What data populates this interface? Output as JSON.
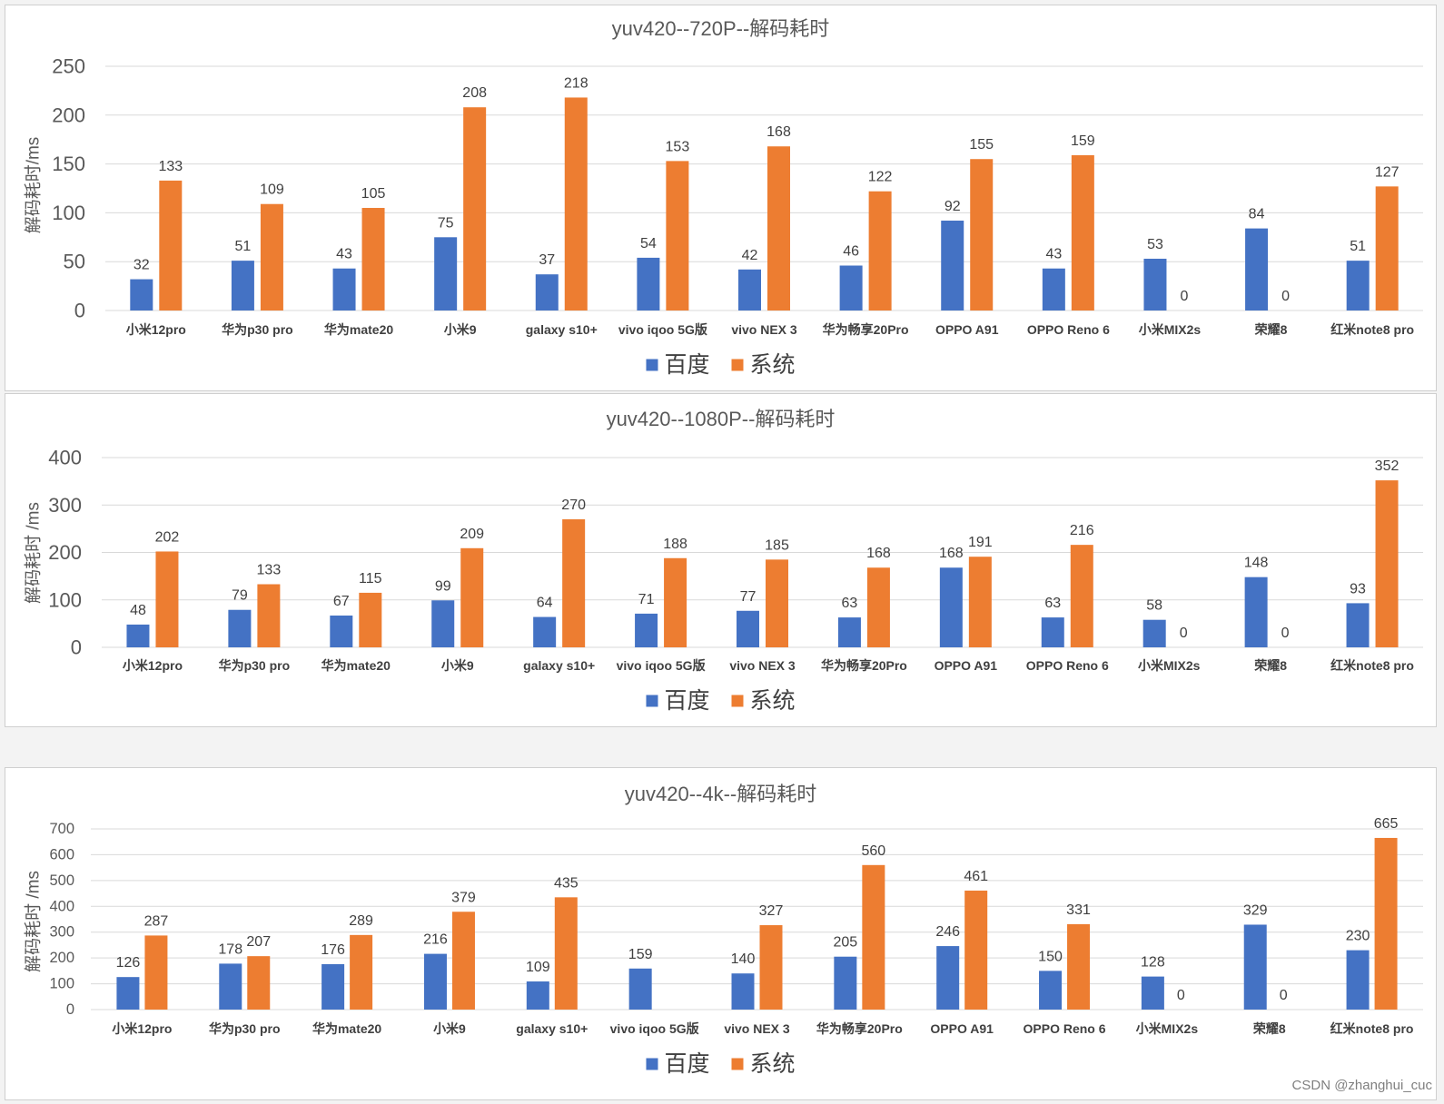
{
  "watermark": "CSDN @zhanghui_cuc",
  "chart_data": [
    {
      "type": "bar",
      "title": "yuv420--720P--解码耗时",
      "ylabel": "解码耗时/ms",
      "ylim": [
        0,
        250
      ],
      "yticks": [
        0,
        50,
        100,
        150,
        200,
        250
      ],
      "grid": true,
      "legend": "bottom",
      "categories": [
        "小米12pro",
        "华为p30 pro",
        "华为mate20",
        "小米9",
        "galaxy s10+",
        "vivo iqoo 5G版",
        "vivo NEX 3",
        "华为畅享20Pro",
        "OPPO A91",
        "OPPO Reno 6",
        "小米MIX2s",
        "荣耀8",
        "红米note8 pro"
      ],
      "series": [
        {
          "name": "百度",
          "color": "#4472C4",
          "values": [
            32,
            51,
            43,
            75,
            37,
            54,
            42,
            46,
            92,
            43,
            53,
            84,
            51
          ]
        },
        {
          "name": "系统",
          "color": "#ED7D31",
          "values": [
            133,
            109,
            105,
            208,
            218,
            153,
            168,
            122,
            155,
            159,
            0,
            0,
            127
          ]
        }
      ]
    },
    {
      "type": "bar",
      "title": "yuv420--1080P--解码耗时",
      "ylabel": "解码耗时 /ms",
      "ylim": [
        0,
        400
      ],
      "yticks": [
        0,
        100,
        200,
        300,
        400
      ],
      "grid": true,
      "legend": "bottom",
      "categories": [
        "小米12pro",
        "华为p30 pro",
        "华为mate20",
        "小米9",
        "galaxy s10+",
        "vivo iqoo 5G版",
        "vivo NEX 3",
        "华为畅享20Pro",
        "OPPO A91",
        "OPPO Reno 6",
        "小米MIX2s",
        "荣耀8",
        "红米note8 pro"
      ],
      "series": [
        {
          "name": "百度",
          "color": "#4472C4",
          "values": [
            48,
            79,
            67,
            99,
            64,
            71,
            77,
            63,
            168,
            63,
            58,
            148,
            93
          ]
        },
        {
          "name": "系统",
          "color": "#ED7D31",
          "values": [
            202,
            133,
            115,
            209,
            270,
            188,
            185,
            168,
            191,
            216,
            0,
            0,
            352
          ]
        }
      ]
    },
    {
      "type": "bar",
      "title": "yuv420--4k--解码耗时",
      "ylabel": "解码耗时 /ms",
      "ylim": [
        0,
        700
      ],
      "yticks": [
        0,
        100,
        200,
        300,
        400,
        500,
        600,
        700
      ],
      "grid": true,
      "legend": "bottom",
      "categories": [
        "小米12pro",
        "华为p30 pro",
        "华为mate20",
        "小米9",
        "galaxy s10+",
        "vivo iqoo 5G版",
        "vivo NEX 3",
        "华为畅享20Pro",
        "OPPO A91",
        "OPPO Reno 6",
        "小米MIX2s",
        "荣耀8",
        "红米note8 pro"
      ],
      "series": [
        {
          "name": "百度",
          "color": "#4472C4",
          "values": [
            126,
            178,
            176,
            216,
            109,
            159,
            140,
            205,
            246,
            150,
            128,
            329,
            230
          ]
        },
        {
          "name": "系统",
          "color": "#ED7D31",
          "values": [
            287,
            207,
            289,
            379,
            435,
            null,
            327,
            560,
            461,
            331,
            0,
            0,
            665
          ]
        }
      ]
    }
  ]
}
